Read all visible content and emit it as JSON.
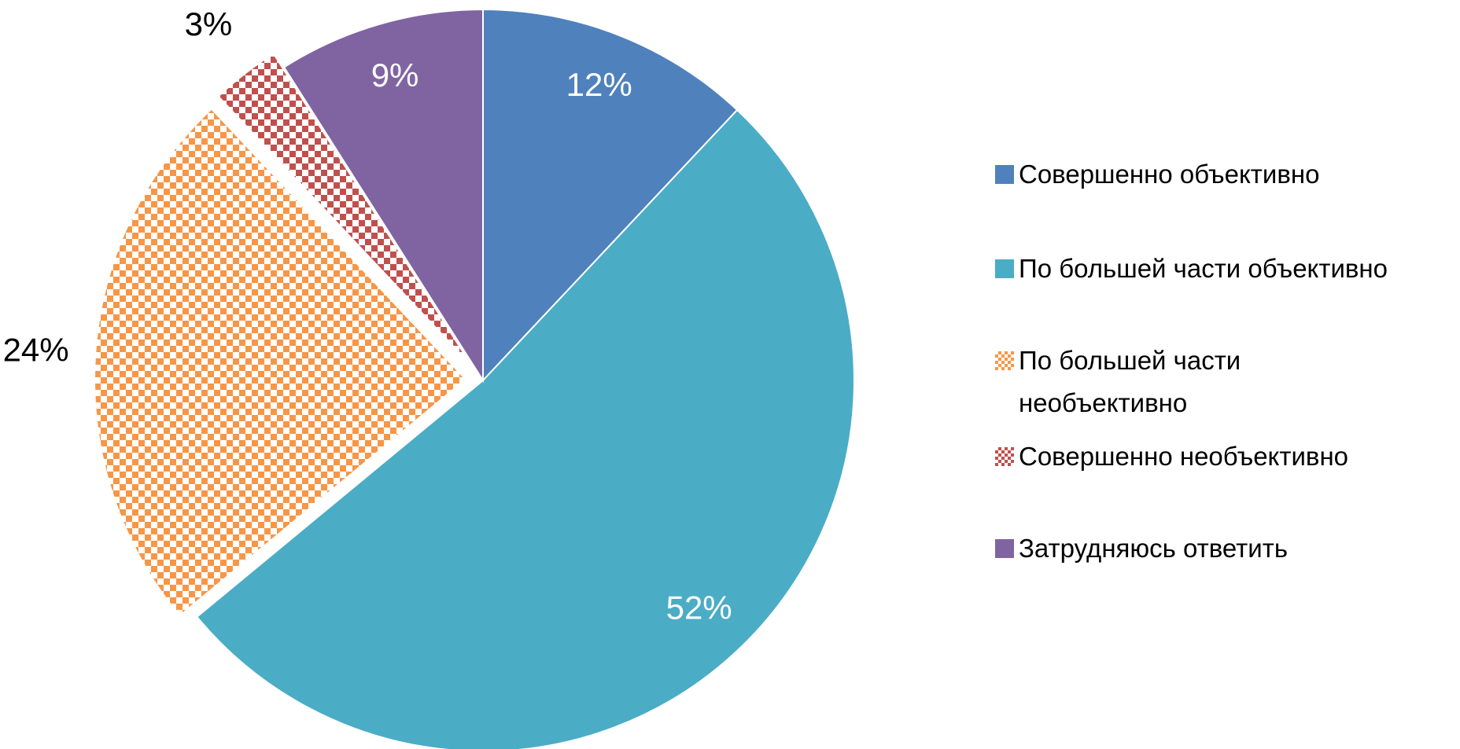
{
  "chart_data": {
    "type": "pie",
    "categories": [
      "Совершенно объективно",
      "По большей части объективно",
      "По большей части необъективно",
      "Совершенно необъективно",
      "Затрудняюсь ответить"
    ],
    "values": [
      12,
      52,
      24,
      3,
      9
    ],
    "value_labels": [
      "12%",
      "52%",
      "24%",
      "3%",
      "9%"
    ],
    "colors": [
      "#4f81bd",
      "#4bacc6",
      "#f79646",
      "#c0504d",
      "#8064a2"
    ],
    "patterns": [
      "solid",
      "solid",
      "checker",
      "checker",
      "solid"
    ],
    "exploded": [
      false,
      false,
      true,
      true,
      false
    ],
    "legend": "right"
  }
}
